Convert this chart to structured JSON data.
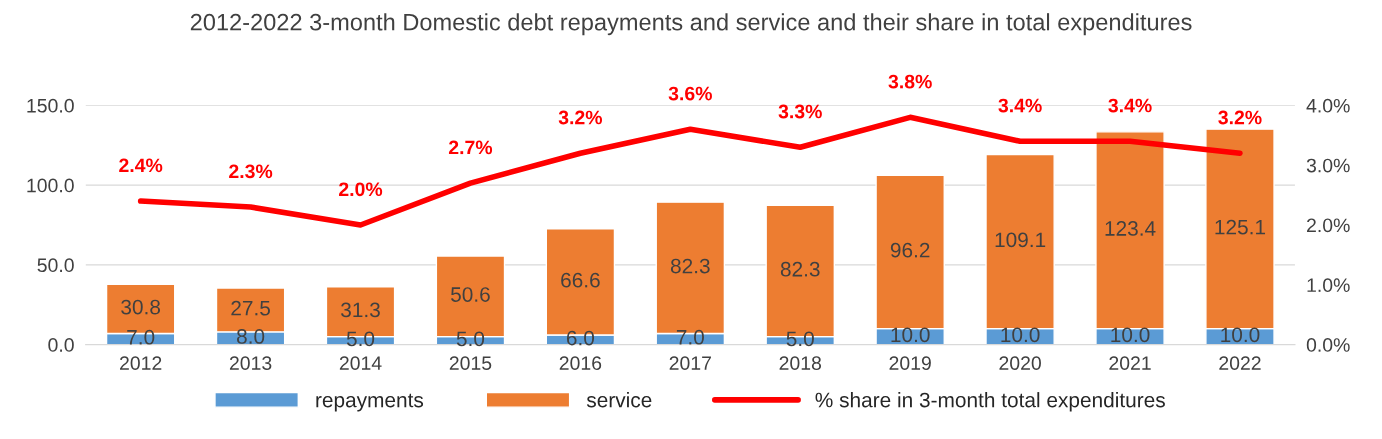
{
  "chart_data": {
    "type": "bar",
    "title": "2012-2022 3-month Domestic debt repayments and service and their share in total expenditures",
    "categories": [
      "2012",
      "2013",
      "2014",
      "2015",
      "2016",
      "2017",
      "2018",
      "2019",
      "2020",
      "2021",
      "2022"
    ],
    "stacked": true,
    "series": [
      {
        "name": "repayments",
        "color": "#5b9bd5",
        "values": [
          7.0,
          8.0,
          5.0,
          5.0,
          6.0,
          7.0,
          5.0,
          10.0,
          10.0,
          10.0,
          10.0
        ],
        "value_labels": [
          "7.0",
          "8.0",
          "5.0",
          "5.0",
          "6.0",
          "7.0",
          "5.0",
          "10.0",
          "10.0",
          "10.0",
          "10.0"
        ]
      },
      {
        "name": "service",
        "color": "#ed7d31",
        "values": [
          30.8,
          27.5,
          31.3,
          50.6,
          66.6,
          82.3,
          82.3,
          96.2,
          109.1,
          123.4,
          125.1
        ],
        "value_labels": [
          "30.8",
          "27.5",
          "31.3",
          "50.6",
          "66.6",
          "82.3",
          "82.3",
          "96.2",
          "109.1",
          "123.4",
          "125.1"
        ]
      },
      {
        "name": "% share in 3-month total expenditures",
        "type": "line",
        "axis": "y2",
        "color": "#ff0000",
        "values": [
          2.4,
          2.3,
          2.0,
          2.7,
          3.2,
          3.6,
          3.3,
          3.8,
          3.4,
          3.4,
          3.2
        ],
        "value_labels": [
          "2.4%",
          "2.3%",
          "2.0%",
          "2.7%",
          "3.2%",
          "3.6%",
          "3.3%",
          "3.8%",
          "3.4%",
          "3.4%",
          "3.2%"
        ]
      }
    ],
    "ylim": [
      0,
      150
    ],
    "yticks": [
      {
        "value": 0,
        "label": "0.0"
      },
      {
        "value": 50,
        "label": "50.0"
      },
      {
        "value": 100,
        "label": "100.0"
      },
      {
        "value": 150,
        "label": "150.0"
      }
    ],
    "y2lim": [
      0,
      4
    ],
    "y2ticks": [
      {
        "value": 0,
        "label": "0.0%"
      },
      {
        "value": 1,
        "label": "1.0%"
      },
      {
        "value": 2,
        "label": "2.0%"
      },
      {
        "value": 3,
        "label": "3.0%"
      },
      {
        "value": 4,
        "label": "4.0%"
      }
    ],
    "grid": "y",
    "legend": "bottom"
  }
}
